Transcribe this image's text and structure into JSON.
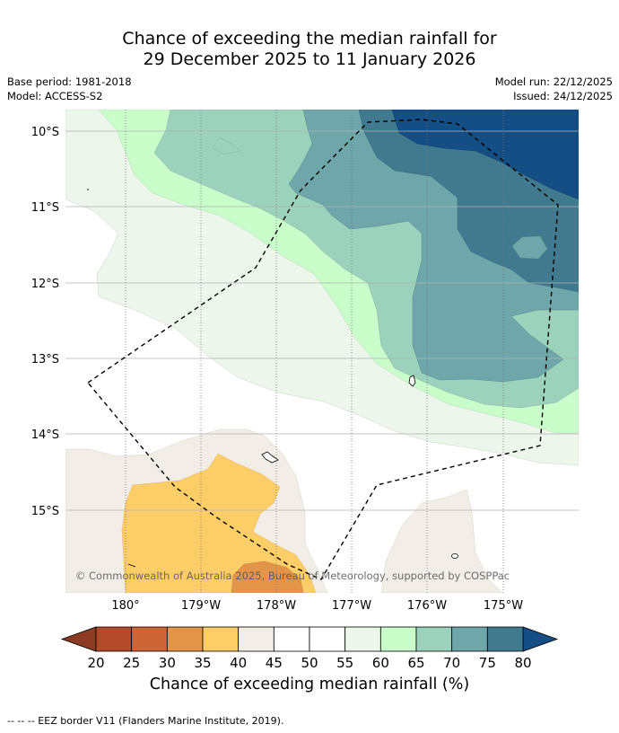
{
  "title": {
    "line1": "Chance of exceeding the median rainfall for",
    "line2": "29 December 2025 to 11 January 2026"
  },
  "meta": {
    "base_period": "Base period: 1981-2018",
    "model": "Model: ACCESS-S2",
    "model_run": "Model run: 22/12/2025",
    "issued": "Issued: 24/12/2025"
  },
  "map": {
    "lat_labels": [
      "10°S",
      "11°S",
      "12°S",
      "13°S",
      "14°S",
      "15°S"
    ],
    "lon_labels": [
      "180°",
      "179°W",
      "178°W",
      "177°W",
      "176°W",
      "175°W"
    ],
    "copyright": "© Commonwealth of Australia 2025, Bureau of Meteorology, supported by COSPPac"
  },
  "colorbar": {
    "ticks": [
      "20",
      "25",
      "30",
      "35",
      "40",
      "45",
      "50",
      "55",
      "60",
      "65",
      "70",
      "75",
      "80"
    ],
    "colors": [
      "#8e3b25",
      "#b1492a",
      "#cd6535",
      "#e39448",
      "#fdcd67",
      "#f2ede7",
      "#ffffff",
      "#ffffff",
      "#ecf6ea",
      "#c9fdca",
      "#9cd1bb",
      "#6ea6a9",
      "#41798f",
      "#144e85"
    ],
    "label": "Chance of exceeding median rainfall (%)"
  },
  "footer": {
    "legend": "--  --  -- EEZ border V11 (Flanders Marine Institute, 2019)."
  }
}
